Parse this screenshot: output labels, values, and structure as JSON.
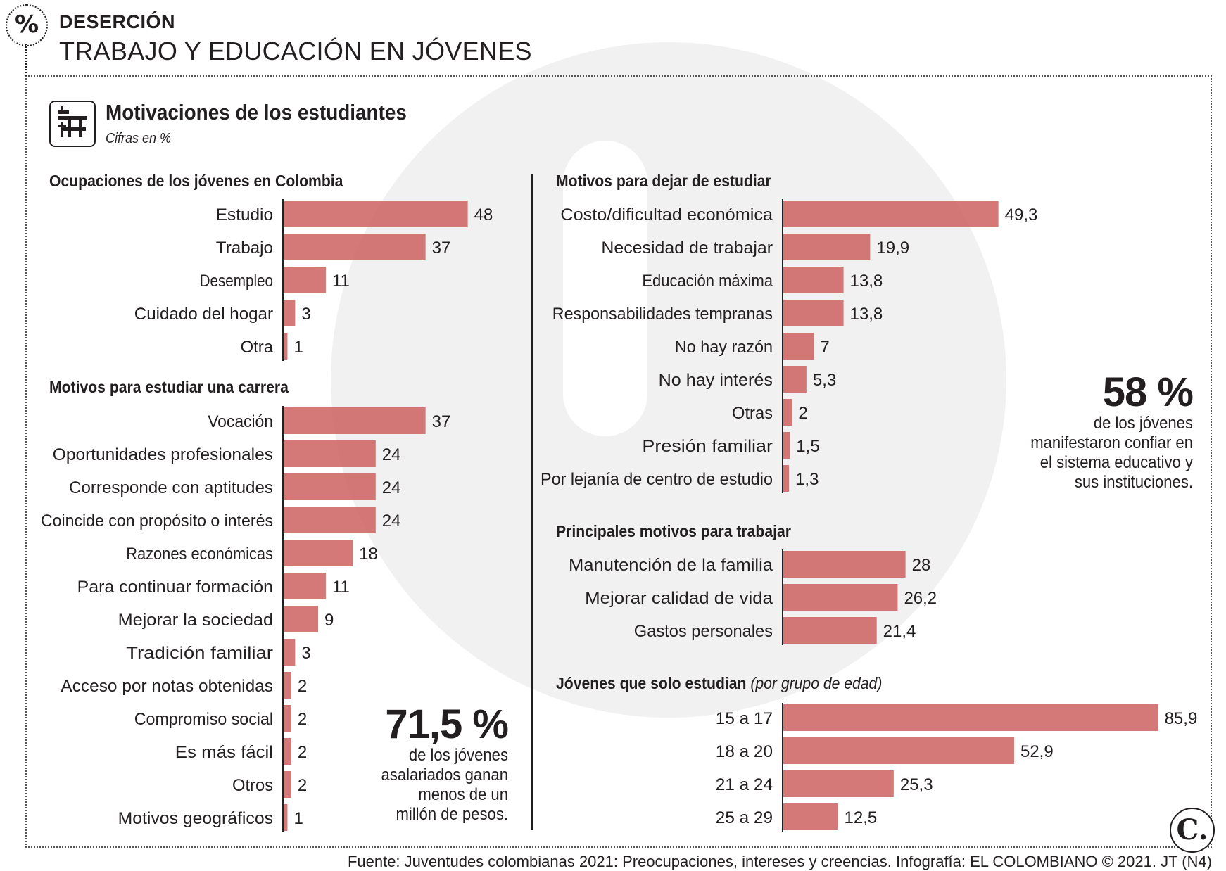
{
  "header": {
    "badge": "%",
    "kicker": "DESERCIÓN",
    "headline": "TRABAJO Y EDUCACIÓN EN JÓVENES"
  },
  "section": {
    "title": "Motivaciones de los estudiantes",
    "subtitle": "Cifras en %",
    "icon": "school-desk-icon"
  },
  "colors": {
    "bar": "#cc5a5a",
    "text": "#231f20",
    "watermark": "#f1f1f2"
  },
  "chart_data": [
    {
      "type": "bar",
      "orientation": "horizontal",
      "title": "Ocupaciones de los jóvenes en Colombia",
      "categories": [
        "Estudio",
        "Trabajo",
        "Desempleo",
        "Cuidado del hogar",
        "Otra"
      ],
      "values": [
        48,
        37,
        11,
        3,
        1
      ],
      "value_labels": [
        "48",
        "37",
        "11",
        "3",
        "1"
      ]
    },
    {
      "type": "bar",
      "orientation": "horizontal",
      "title": "Motivos para estudiar una carrera",
      "categories": [
        "Vocación",
        "Oportunidades profesionales",
        "Corresponde con aptitudes",
        "Coincide con propósito o interés",
        "Razones económicas",
        "Para continuar formación",
        "Mejorar la sociedad",
        "Tradición familiar",
        "Acceso por notas obtenidas",
        "Compromiso social",
        "Es más fácil",
        "Otros",
        "Motivos geográficos"
      ],
      "values": [
        37,
        24,
        24,
        24,
        18,
        11,
        9,
        3,
        2,
        2,
        2,
        2,
        1
      ],
      "value_labels": [
        "37",
        "24",
        "24",
        "24",
        "18",
        "11",
        "9",
        "3",
        "2",
        "2",
        "2",
        "2",
        "1"
      ]
    },
    {
      "type": "bar",
      "orientation": "horizontal",
      "title": "Motivos para dejar de estudiar",
      "categories": [
        "Costo/dificultad económica",
        "Necesidad de trabajar",
        "Educación máxima",
        "Responsabilidades tempranas",
        "No hay razón",
        "No hay interés",
        "Otras",
        "Presión familiar",
        "Por lejanía de centro de estudio"
      ],
      "values": [
        49.3,
        19.9,
        13.8,
        13.8,
        7,
        5.3,
        2,
        1.5,
        1.3
      ],
      "value_labels": [
        "49,3",
        "19,9",
        "13,8",
        "13,8",
        "7",
        "5,3",
        "2",
        "1,5",
        "1,3"
      ]
    },
    {
      "type": "bar",
      "orientation": "horizontal",
      "title": "Principales motivos para trabajar",
      "categories": [
        "Manutención de la familia",
        "Mejorar calidad de vida",
        "Gastos personales"
      ],
      "values": [
        28,
        26.2,
        21.4
      ],
      "value_labels": [
        "28",
        "26,2",
        "21,4"
      ]
    },
    {
      "type": "bar",
      "orientation": "horizontal",
      "title": "Jóvenes que solo estudian",
      "title_note": "(por grupo de edad)",
      "categories": [
        "15 a 17",
        "18 a 20",
        "21 a 24",
        "25 a 29"
      ],
      "values": [
        85.9,
        52.9,
        25.3,
        12.5
      ],
      "value_labels": [
        "85,9",
        "52,9",
        "25,3",
        "12,5"
      ]
    }
  ],
  "stats": {
    "right": {
      "value": "58 %",
      "lines": [
        "de los jóvenes",
        "manifestaron confiar en",
        "el sistema educativo y",
        "sus instituciones."
      ]
    },
    "left": {
      "value": "71,5 %",
      "lines": [
        "de los jóvenes",
        "asalariados ganan",
        "menos de un",
        "millón de pesos."
      ]
    }
  },
  "logo": "C.",
  "source": "Fuente: Juventudes colombianas 2021: Preocupaciones, intereses y creencias. Infografía: EL COLOMBIANO © 2021. JT (N4)"
}
